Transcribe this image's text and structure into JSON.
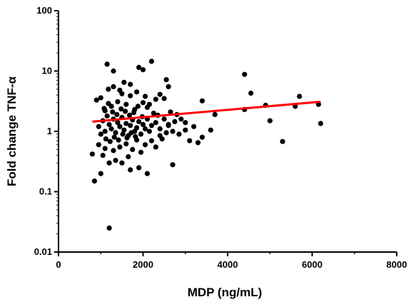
{
  "chart_data": {
    "type": "scatter",
    "title": "",
    "xlabel": "MDP (ng/mL)",
    "ylabel": "Fold change TNF-α",
    "xlim": [
      0,
      8000
    ],
    "ylim": [
      0.01,
      100
    ],
    "y_scale": "log",
    "grid": false,
    "x_ticks": [
      0,
      2000,
      4000,
      6000,
      8000
    ],
    "x_tick_labels": [
      "0",
      "2000",
      "4000",
      "6000",
      "8000"
    ],
    "y_ticks": [
      0.01,
      0.1,
      1,
      10,
      100
    ],
    "y_tick_labels": [
      "0.01",
      "0.1",
      "1",
      "10",
      "100"
    ],
    "colors": {
      "points": "#000000",
      "fit_line": "#ff0000"
    },
    "fit_line": {
      "x": [
        800,
        6200
      ],
      "y": [
        1.45,
        3.1
      ]
    },
    "series": [
      {
        "points": [
          [
            1200,
            0.025
          ],
          [
            1150,
            13
          ],
          [
            2200,
            14.5
          ],
          [
            1900,
            11.5
          ],
          [
            2000,
            10.5
          ],
          [
            1300,
            10
          ],
          [
            2550,
            7.2
          ],
          [
            4400,
            8.8
          ],
          [
            4550,
            4.3
          ],
          [
            5700,
            3.8
          ],
          [
            6150,
            2.8
          ],
          [
            6200,
            1.35
          ],
          [
            5300,
            0.68
          ],
          [
            5000,
            1.5
          ],
          [
            4900,
            2.7
          ],
          [
            5600,
            2.6
          ],
          [
            4400,
            2.3
          ],
          [
            3700,
            1.9
          ],
          [
            3600,
            1.05
          ],
          [
            3400,
            3.2
          ],
          [
            3300,
            0.65
          ],
          [
            3100,
            0.7
          ],
          [
            2900,
            1.6
          ],
          [
            3000,
            1.05
          ],
          [
            3400,
            0.8
          ],
          [
            2700,
            0.28
          ],
          [
            2650,
            2.1
          ],
          [
            2500,
            3.5
          ],
          [
            2400,
            4.1
          ],
          [
            2600,
            5.5
          ],
          [
            2100,
            0.2
          ],
          [
            1900,
            0.25
          ],
          [
            1700,
            0.23
          ],
          [
            1650,
            0.38
          ],
          [
            1500,
            0.3
          ],
          [
            1350,
            0.33
          ],
          [
            1200,
            0.3
          ],
          [
            1000,
            0.2
          ],
          [
            850,
            0.15
          ],
          [
            800,
            0.42
          ],
          [
            1050,
            0.4
          ],
          [
            950,
            0.6
          ],
          [
            1100,
            0.52
          ],
          [
            1300,
            0.48
          ],
          [
            1450,
            0.55
          ],
          [
            1600,
            0.62
          ],
          [
            1750,
            0.5
          ],
          [
            1850,
            0.72
          ],
          [
            1950,
            0.45
          ],
          [
            2050,
            0.6
          ],
          [
            2200,
            0.7
          ],
          [
            2300,
            0.55
          ],
          [
            2400,
            0.85
          ],
          [
            900,
            3.3
          ],
          [
            1000,
            3.6
          ],
          [
            1100,
            2.2
          ],
          [
            1250,
            2.6
          ],
          [
            1400,
            3.1
          ],
          [
            1500,
            4.2
          ],
          [
            1600,
            2.8
          ],
          [
            1700,
            3.9
          ],
          [
            1800,
            2.3
          ],
          [
            2000,
            3.0
          ],
          [
            2100,
            2.5
          ],
          [
            2250,
            2.0
          ],
          [
            2300,
            3.4
          ],
          [
            950,
            1.2
          ],
          [
            1000,
            0.9
          ],
          [
            1050,
            1.5
          ],
          [
            1100,
            1.0
          ],
          [
            1150,
            1.8
          ],
          [
            1200,
            1.3
          ],
          [
            1250,
            1.1
          ],
          [
            1300,
            1.6
          ],
          [
            1350,
            0.95
          ],
          [
            1400,
            1.4
          ],
          [
            1450,
            1.2
          ],
          [
            1500,
            1.7
          ],
          [
            1550,
            1.05
          ],
          [
            1600,
            1.35
          ],
          [
            1650,
            0.85
          ],
          [
            1700,
            1.25
          ],
          [
            1750,
            1.55
          ],
          [
            1800,
            1.0
          ],
          [
            1850,
            1.15
          ],
          [
            1900,
            1.45
          ],
          [
            1950,
            0.9
          ],
          [
            2000,
            1.3
          ],
          [
            2050,
            1.1
          ],
          [
            2100,
            1.6
          ],
          [
            2150,
            1.0
          ],
          [
            2200,
            1.25
          ],
          [
            2300,
            1.4
          ],
          [
            2400,
            1.1
          ],
          [
            2500,
            1.6
          ],
          [
            2600,
            1.3
          ],
          [
            2700,
            1.0
          ],
          [
            2800,
            1.9
          ],
          [
            1120,
            0.75
          ],
          [
            1220,
            0.68
          ],
          [
            1320,
            0.8
          ],
          [
            1420,
            0.72
          ],
          [
            1520,
            0.9
          ],
          [
            1620,
            0.78
          ],
          [
            1720,
            0.95
          ],
          [
            1820,
            0.82
          ],
          [
            1080,
            2.4
          ],
          [
            1180,
            2.9
          ],
          [
            1280,
            2.1
          ],
          [
            1380,
            1.9
          ],
          [
            1480,
            2.35
          ],
          [
            1580,
            2.15
          ],
          [
            1680,
            1.85
          ],
          [
            1780,
            2.05
          ],
          [
            1880,
            2.6
          ],
          [
            1980,
            1.75
          ],
          [
            1180,
            5.0
          ],
          [
            1300,
            5.5
          ],
          [
            1450,
            4.8
          ],
          [
            1550,
            6.5
          ],
          [
            1850,
            4.5
          ],
          [
            1700,
            6.0
          ],
          [
            2600,
            1.25
          ],
          [
            2750,
            1.45
          ],
          [
            2850,
            0.9
          ],
          [
            3200,
            1.2
          ],
          [
            3000,
            1.4
          ],
          [
            2550,
            0.95
          ],
          [
            2450,
            0.75
          ],
          [
            2350,
            1.85
          ],
          [
            2150,
            2.8
          ],
          [
            2050,
            3.8
          ]
        ]
      }
    ]
  }
}
